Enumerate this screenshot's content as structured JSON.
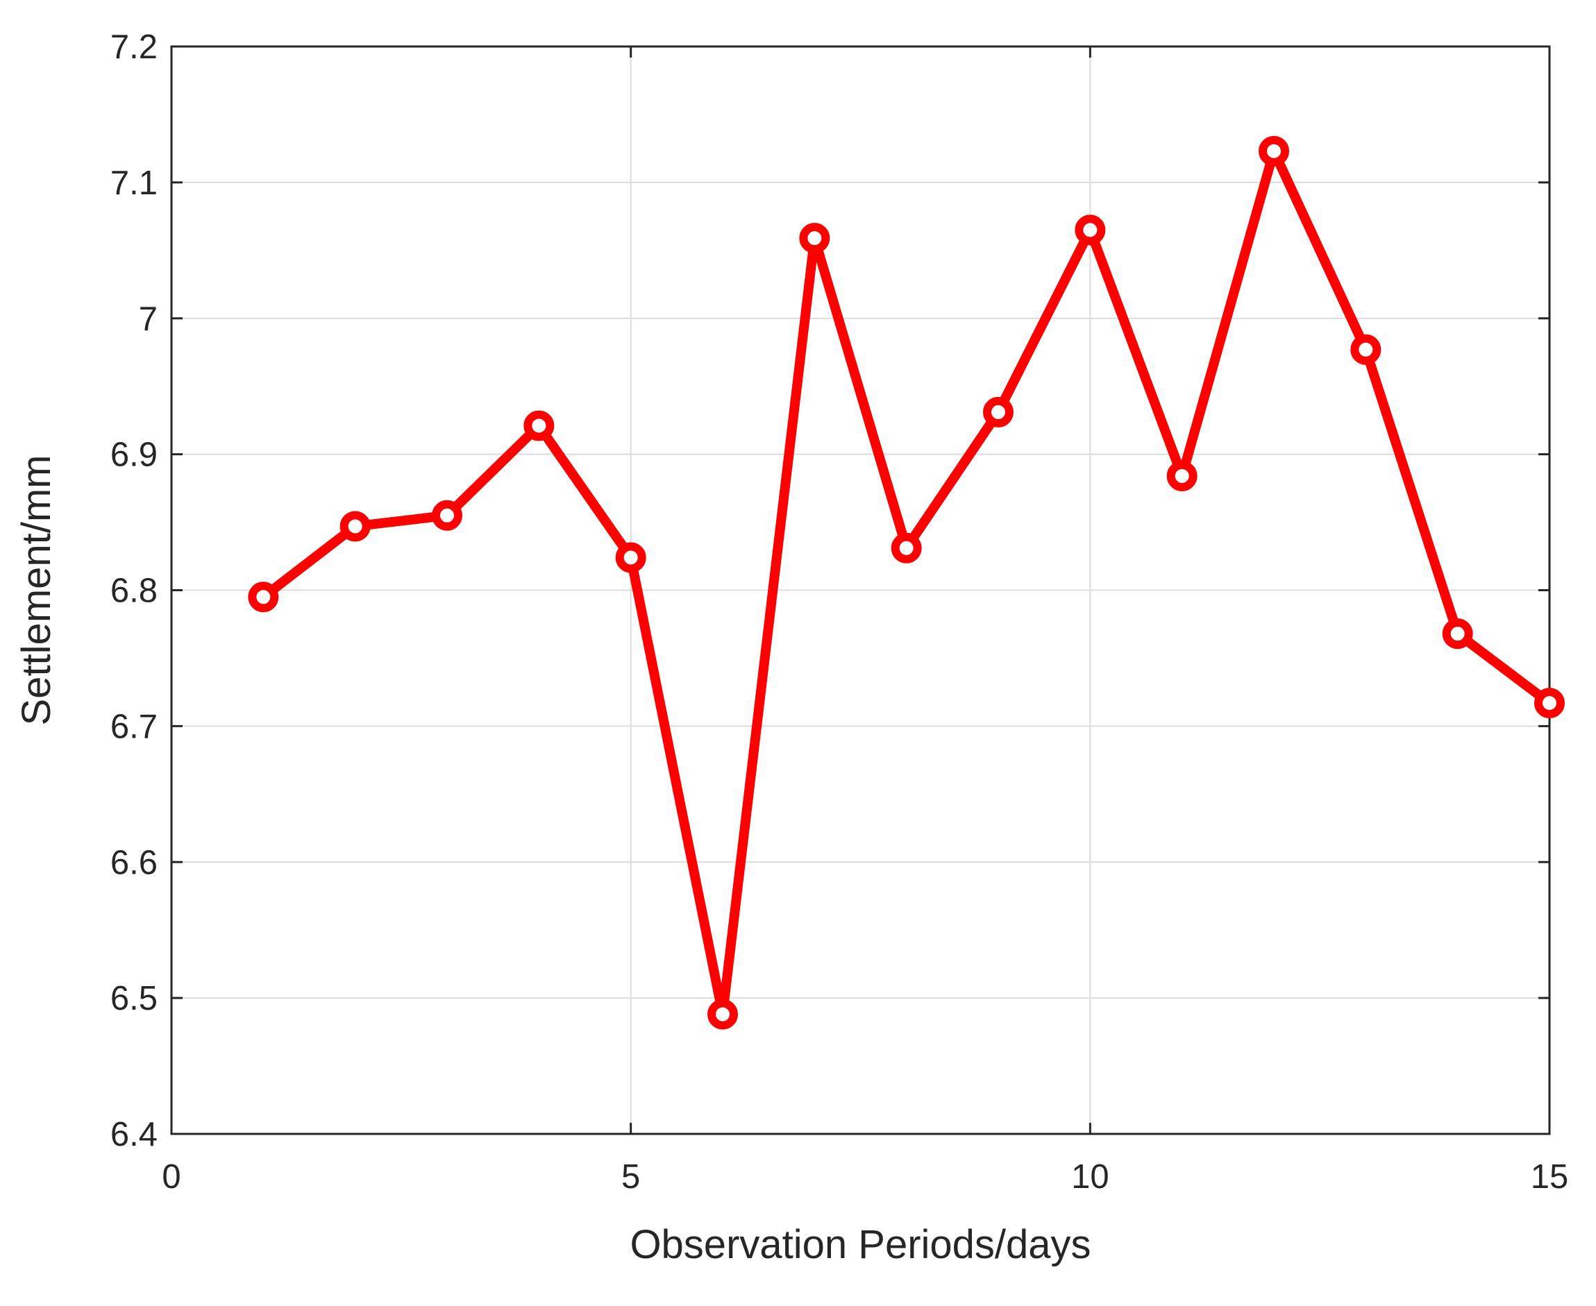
{
  "chart_data": {
    "type": "line",
    "title": "",
    "xlabel": "Observation Periods/days",
    "ylabel": "Settlement/mm",
    "xlim": [
      0,
      15
    ],
    "ylim": [
      6.4,
      7.2
    ],
    "grid": true,
    "x_ticks": [
      0,
      5,
      10,
      15
    ],
    "x_tick_labels": [
      "0",
      "5",
      "10",
      "15"
    ],
    "y_ticks": [
      6.4,
      6.5,
      6.6,
      6.7,
      6.8,
      6.9,
      7.0,
      7.1,
      7.2
    ],
    "y_tick_labels": [
      "6.4",
      "6.5",
      "6.6",
      "6.7",
      "6.8",
      "6.9",
      "7",
      "7.1",
      "7.2"
    ],
    "series": [
      {
        "color": "#ff0000",
        "marker": "circle",
        "x": [
          1,
          2,
          3,
          4,
          5,
          6,
          7,
          8,
          9,
          10,
          11,
          12,
          13,
          14,
          15
        ],
        "y": [
          6.795,
          6.847,
          6.855,
          6.921,
          6.824,
          6.488,
          7.059,
          6.831,
          6.931,
          7.065,
          6.884,
          7.123,
          6.977,
          6.768,
          6.717
        ]
      }
    ]
  }
}
